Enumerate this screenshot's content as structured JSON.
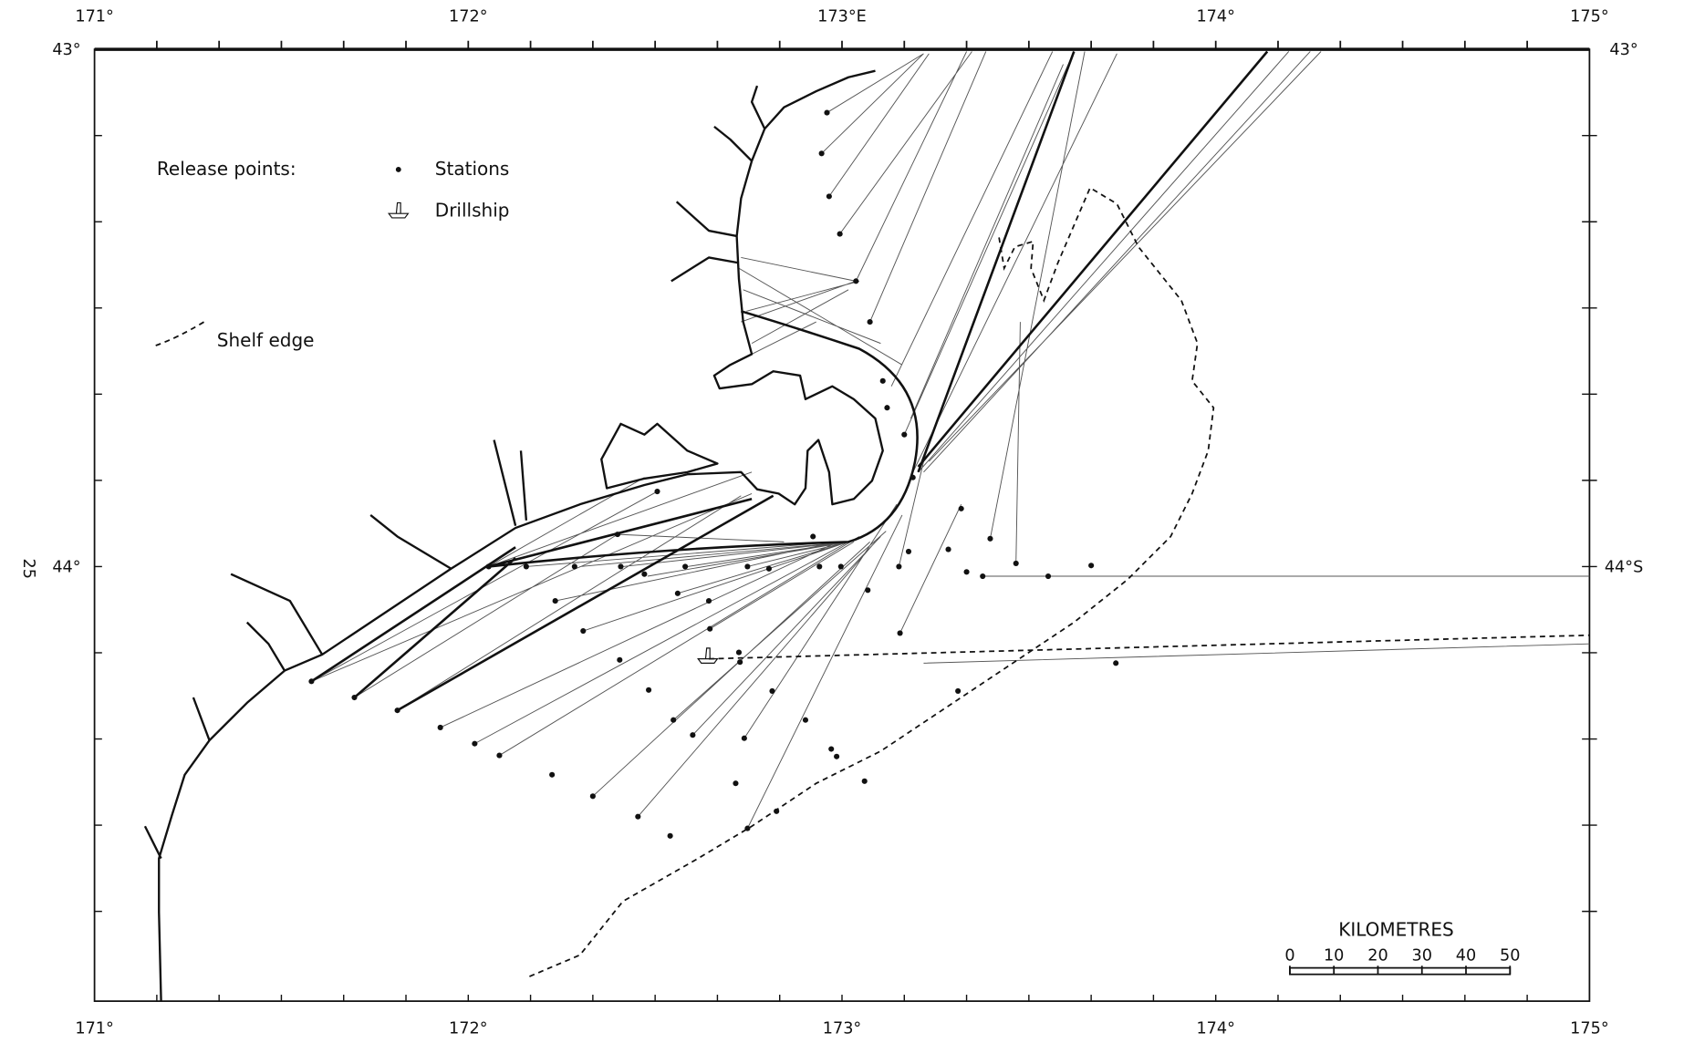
{
  "map": {
    "top_axis": [
      "171°",
      "172°",
      "173°E",
      "174°",
      "175°"
    ],
    "bottom_axis": [
      "171°",
      "172°",
      "173°",
      "174°",
      "175°"
    ],
    "left_axis": [
      "43°",
      "44°"
    ],
    "right_axis": [
      "43°",
      "44°S"
    ],
    "legend": {
      "title": "Release points:",
      "items": [
        "Stations",
        "Drillship",
        "Shelf edge"
      ]
    },
    "scale_bar": {
      "title": "KILOMETRES",
      "labels": [
        "0",
        "10",
        "20",
        "30",
        "40",
        "50"
      ]
    },
    "page_number": "25"
  }
}
